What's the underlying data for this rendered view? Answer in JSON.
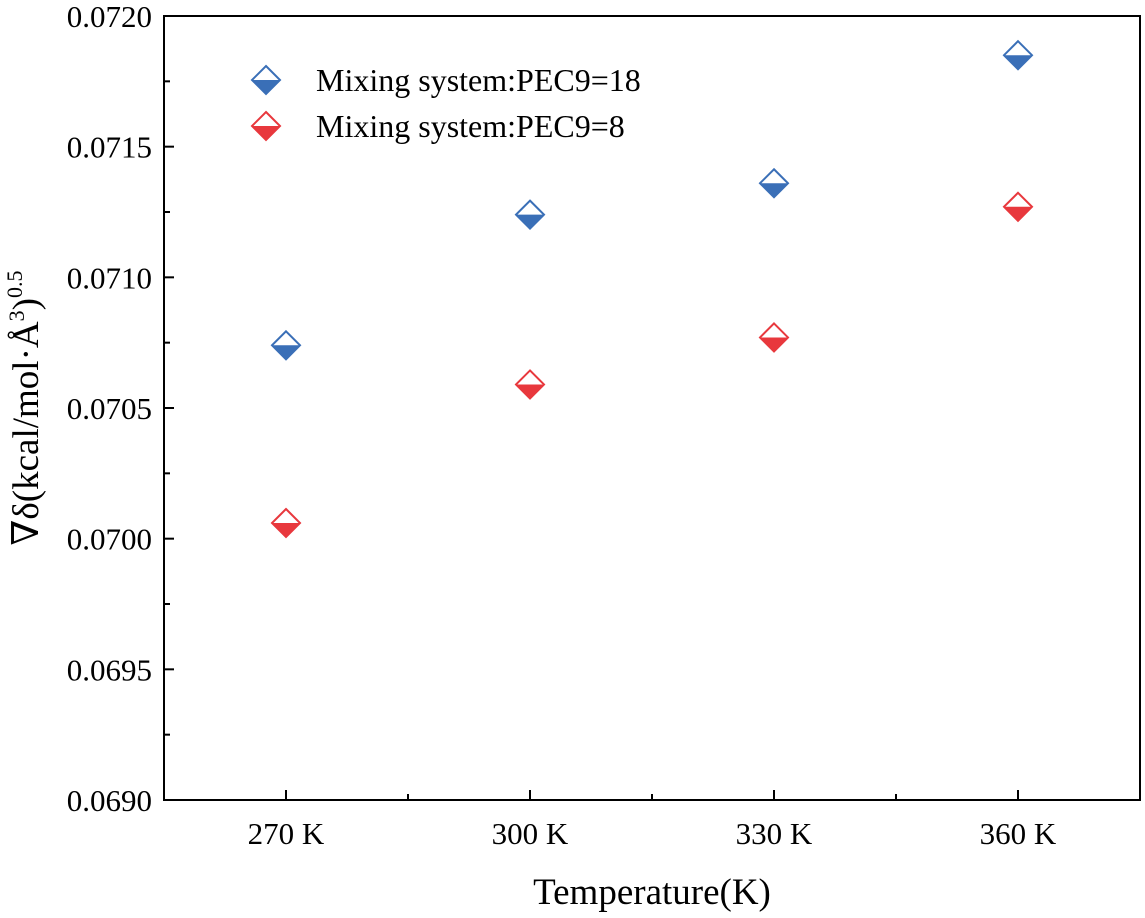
{
  "chart_data": {
    "type": "scatter",
    "categories": [
      "270 K",
      "300 K",
      "330 K",
      "360 K"
    ],
    "series": [
      {
        "name": "Mixing system:PEC9=18",
        "color": "#3a6fb7",
        "marker": "half-filled-diamond-icon",
        "values": [
          0.07074,
          0.07124,
          0.07136,
          0.07185
        ]
      },
      {
        "name": "Mixing system:PEC9=8",
        "color": "#e8383d",
        "marker": "half-filled-diamond-icon",
        "values": [
          0.07006,
          0.07059,
          0.07077,
          0.07127
        ]
      }
    ],
    "xlabel": "Temperature(K)",
    "ylabel": {
      "base": "∇δ(kcal/mol·Å",
      "sup1": "3",
      "close": ")",
      "sup2": "0.5"
    },
    "ylim": [
      0.069,
      0.072
    ],
    "yticks": [
      "0.0690",
      "0.0695",
      "0.0700",
      "0.0705",
      "0.0710",
      "0.0715",
      "0.0720"
    ],
    "grid": false,
    "legend_position": "top-left"
  }
}
